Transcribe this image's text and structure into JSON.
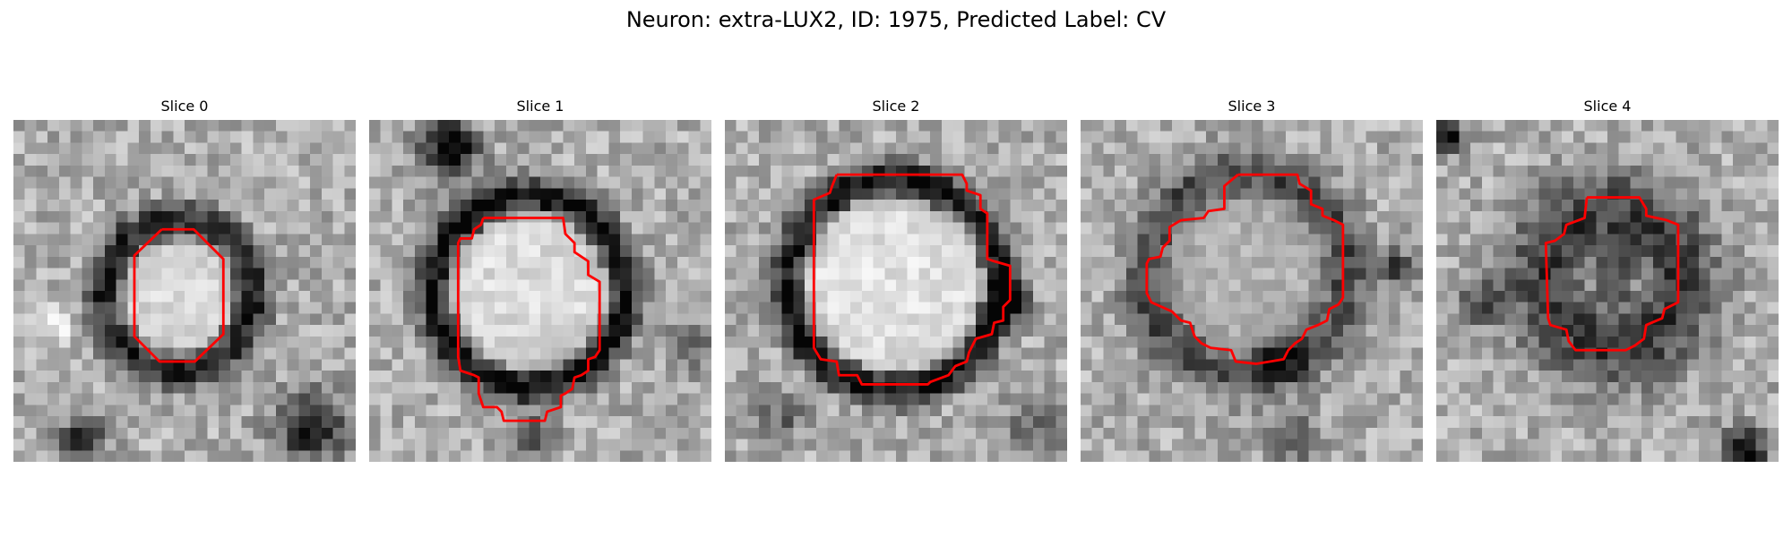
{
  "figure": {
    "suptitle": "Neuron: extra-LUX2, ID: 1975, Predicted Label: CV",
    "contour_color": "#ff0000",
    "colormap": "gray",
    "panels": [
      {
        "title": "Slice 0"
      },
      {
        "title": "Slice 1"
      },
      {
        "title": "Slice 2"
      },
      {
        "title": "Slice 3"
      },
      {
        "title": "Slice 4"
      }
    ]
  }
}
